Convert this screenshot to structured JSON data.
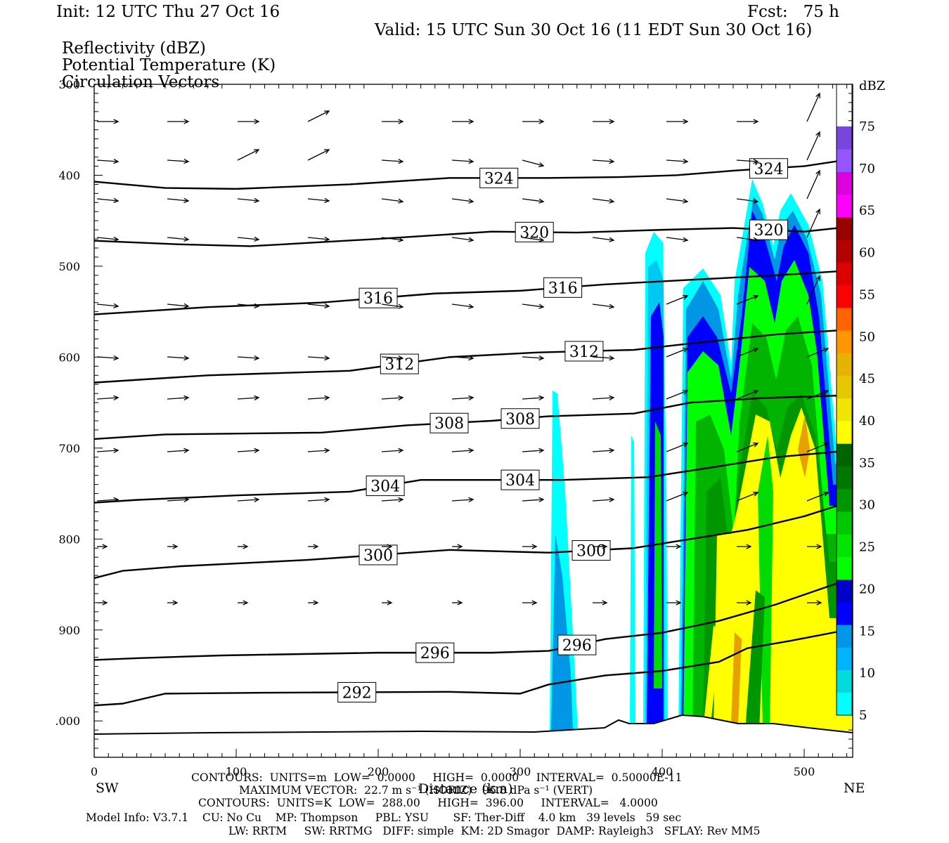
{
  "header": {
    "init": "Init: 12 UTC Thu 27 Oct 16",
    "fcst": "Fcst:   75 h",
    "valid": "Valid: 15 UTC Sun 30 Oct 16 (11 EDT Sun 30 Oct 16)",
    "fields": [
      "Reflectivity (dBZ)",
      "Potential Temperature (K)",
      "Circulation Vectors"
    ]
  },
  "chart_data": {
    "type": "heatmap",
    "title": "Reflectivity (dBZ)",
    "xlabel": "Distance (km)",
    "ylabel": "",
    "x_ticks": [
      0,
      100,
      200,
      300,
      400,
      500
    ],
    "y_ticks": [
      "300",
      "400",
      "500",
      "600",
      "700",
      "800",
      "900",
      ".000"
    ],
    "xlim": [
      0,
      530
    ],
    "ylim_hpa": [
      1040,
      300
    ],
    "left_end": "SW",
    "right_end": "NE",
    "colorbar": {
      "unit": "dBZ",
      "labels": [
        5,
        10,
        15,
        20,
        25,
        30,
        35,
        40,
        45,
        50,
        55,
        60,
        65,
        70,
        75
      ],
      "colors": [
        "#00ffff",
        "#00dcdc",
        "#00b4ff",
        "#0096e6",
        "#0000ff",
        "#0000c8",
        "#00ff00",
        "#00e600",
        "#00c800",
        "#009600",
        "#007800",
        "#006400",
        "#ffff00",
        "#f0e600",
        "#e6c800",
        "#e6b400",
        "#ff9600",
        "#ff6400",
        "#ff0000",
        "#dc0000",
        "#b40000",
        "#960000",
        "#ff00ff",
        "#dc00dc",
        "#9655ff",
        "#7846dc"
      ]
    },
    "theta_contours": [
      {
        "value": 292,
        "label": "292",
        "pts": [
          [
            0,
            983
          ],
          [
            20,
            981
          ],
          [
            50,
            970
          ],
          [
            120,
            969
          ],
          [
            250,
            968
          ],
          [
            300,
            970
          ],
          [
            320,
            960
          ],
          [
            360,
            950
          ],
          [
            400,
            945
          ],
          [
            440,
            935
          ],
          [
            460,
            920
          ],
          [
            490,
            912
          ],
          [
            530,
            900
          ]
        ]
      },
      {
        "value": 296,
        "label": "296",
        "pts": [
          [
            0,
            933
          ],
          [
            30,
            931
          ],
          [
            90,
            928
          ],
          [
            200,
            925
          ],
          [
            280,
            925
          ],
          [
            320,
            923
          ],
          [
            360,
            910
          ],
          [
            400,
            903
          ],
          [
            440,
            890
          ],
          [
            480,
            872
          ],
          [
            530,
            845
          ]
        ]
      },
      {
        "value": 300,
        "label": "300",
        "pts": [
          [
            0,
            843
          ],
          [
            20,
            835
          ],
          [
            60,
            830
          ],
          [
            150,
            823
          ],
          [
            250,
            812
          ],
          [
            320,
            815
          ],
          [
            380,
            810
          ],
          [
            420,
            800
          ],
          [
            460,
            790
          ],
          [
            500,
            775
          ],
          [
            530,
            760
          ]
        ]
      },
      {
        "value": 304,
        "label": "304",
        "pts": [
          [
            0,
            760
          ],
          [
            30,
            757
          ],
          [
            100,
            752
          ],
          [
            180,
            748
          ],
          [
            230,
            735
          ],
          [
            270,
            735
          ],
          [
            330,
            735
          ],
          [
            390,
            732
          ],
          [
            440,
            720
          ],
          [
            480,
            710
          ],
          [
            530,
            703
          ]
        ]
      },
      {
        "value": 308,
        "label": "308",
        "pts": [
          [
            0,
            690
          ],
          [
            50,
            685
          ],
          [
            160,
            683
          ],
          [
            220,
            675
          ],
          [
            280,
            670
          ],
          [
            320,
            665
          ],
          [
            380,
            662
          ],
          [
            420,
            650
          ],
          [
            470,
            645
          ],
          [
            530,
            642
          ]
        ]
      },
      {
        "value": 312,
        "label": "312",
        "pts": [
          [
            0,
            628
          ],
          [
            80,
            620
          ],
          [
            180,
            615
          ],
          [
            250,
            600
          ],
          [
            310,
            595
          ],
          [
            380,
            592
          ],
          [
            420,
            585
          ],
          [
            480,
            575
          ],
          [
            530,
            570
          ]
        ]
      },
      {
        "value": 316,
        "label": "316",
        "pts": [
          [
            0,
            553
          ],
          [
            80,
            545
          ],
          [
            160,
            540
          ],
          [
            240,
            530
          ],
          [
            300,
            527
          ],
          [
            360,
            520
          ],
          [
            420,
            515
          ],
          [
            480,
            510
          ],
          [
            530,
            505
          ]
        ]
      },
      {
        "value": 320,
        "label": "320",
        "pts": [
          [
            0,
            472
          ],
          [
            60,
            476
          ],
          [
            110,
            478
          ],
          [
            200,
            470
          ],
          [
            280,
            462
          ],
          [
            340,
            463
          ],
          [
            400,
            460
          ],
          [
            450,
            458
          ],
          [
            500,
            462
          ],
          [
            530,
            457
          ]
        ]
      },
      {
        "value": 324,
        "label": "324",
        "pts": [
          [
            0,
            407
          ],
          [
            50,
            414
          ],
          [
            100,
            415
          ],
          [
            180,
            410
          ],
          [
            250,
            403
          ],
          [
            320,
            403
          ],
          [
            370,
            402
          ],
          [
            410,
            400
          ],
          [
            450,
            395
          ],
          [
            500,
            390
          ],
          [
            530,
            383
          ]
        ]
      }
    ],
    "maximum_vector": "MAXIMUM VECTOR:  22.7 m s",
    "footer_lines": [
      "CONTOURS:  UNITS=m  LOW=  0.0000     HIGH=  0.0000     INTERVAL=  0.50000E-11",
      "MAXIMUM VECTOR:  22.7 m s⁻¹ (HORIZ)   96.8 dPa s⁻¹ (VERT)",
      "CONTOURS:  UNITS=K  LOW=  288.00     HIGH=  396.00     INTERVAL=   4.0000",
      "Model Info: V3.7.1    CU: No Cu    MP: Thompson     PBL: YSU       SF: Ther-Diff    4.0 km   39 levels   59 sec",
      "LW: RRTM     SW: RRTMG   DIFF: simple  KM: 2D Smagor  DAMP: Rayleigh3   SFLAY: Rev MM5"
    ]
  }
}
